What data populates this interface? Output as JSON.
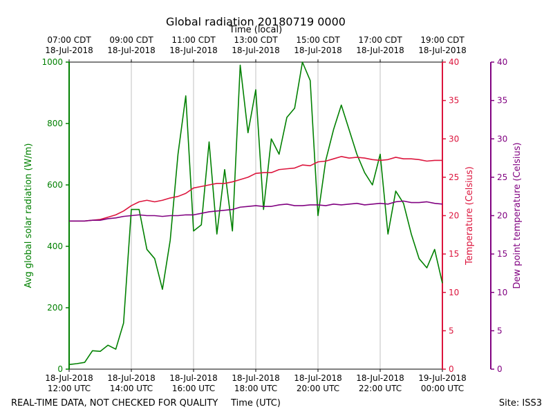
{
  "chart_data": {
    "type": "line",
    "title": "Global radiation 20180719 0000",
    "x_label": "Time (UTC)",
    "top_x_label": "Time (local)",
    "y_label": "Avg global solar radiation (W/m)",
    "y2_label": "Temperature (Celsius)",
    "y3_label": "Dew point temperature (Celsius)",
    "annotations": [
      "REAL-TIME DATA, NOT CHECKED FOR QUALITY",
      "Site: ISS3"
    ],
    "grid": "x",
    "xlim": [
      "2018-07-18T12:00",
      "2018-07-19T00:00"
    ],
    "xticks": [
      {
        "value": "2018-07-18T12:00",
        "label": [
          "18-Jul-2018",
          "12:00 UTC"
        ]
      },
      {
        "value": "2018-07-18T14:00",
        "label": [
          "18-Jul-2018",
          "14:00 UTC"
        ]
      },
      {
        "value": "2018-07-18T16:00",
        "label": [
          "18-Jul-2018",
          "16:00 UTC"
        ]
      },
      {
        "value": "2018-07-18T18:00",
        "label": [
          "18-Jul-2018",
          "18:00 UTC"
        ]
      },
      {
        "value": "2018-07-18T20:00",
        "label": [
          "18-Jul-2018",
          "20:00 UTC"
        ]
      },
      {
        "value": "2018-07-18T22:00",
        "label": [
          "18-Jul-2018",
          "22:00 UTC"
        ]
      },
      {
        "value": "2018-07-19T00:00",
        "label": [
          "19-Jul-2018",
          "00:00 UTC"
        ]
      }
    ],
    "top_xticks": [
      {
        "value": "2018-07-18T12:00",
        "label": [
          "07:00 CDT",
          "18-Jul-2018"
        ]
      },
      {
        "value": "2018-07-18T14:00",
        "label": [
          "09:00 CDT",
          "18-Jul-2018"
        ]
      },
      {
        "value": "2018-07-18T16:00",
        "label": [
          "11:00 CDT",
          "18-Jul-2018"
        ]
      },
      {
        "value": "2018-07-18T18:00",
        "label": [
          "13:00 CDT",
          "18-Jul-2018"
        ]
      },
      {
        "value": "2018-07-18T20:00",
        "label": [
          "15:00 CDT",
          "18-Jul-2018"
        ]
      },
      {
        "value": "2018-07-18T22:00",
        "label": [
          "17:00 CDT",
          "18-Jul-2018"
        ]
      },
      {
        "value": "2018-07-19T00:00",
        "label": [
          "19:00 CDT",
          "18-Jul-2018"
        ]
      }
    ],
    "ylim": [
      0,
      1000
    ],
    "yticks": [
      0,
      200,
      400,
      600,
      800,
      1000
    ],
    "y2lim": [
      0,
      40
    ],
    "y2ticks": [
      0,
      5,
      10,
      15,
      20,
      25,
      30,
      35,
      40
    ],
    "y3lim": [
      0,
      40
    ],
    "y3ticks": [
      0,
      5,
      10,
      15,
      20,
      25,
      30,
      35,
      40
    ],
    "axis_colors": {
      "y": "#008000",
      "y2": "#dc143c",
      "y3": "#800080"
    },
    "x": [
      "2018-07-18T12:00",
      "2018-07-18T12:15",
      "2018-07-18T12:30",
      "2018-07-18T12:45",
      "2018-07-18T13:00",
      "2018-07-18T13:15",
      "2018-07-18T13:30",
      "2018-07-18T13:45",
      "2018-07-18T14:00",
      "2018-07-18T14:15",
      "2018-07-18T14:30",
      "2018-07-18T14:45",
      "2018-07-18T15:00",
      "2018-07-18T15:15",
      "2018-07-18T15:30",
      "2018-07-18T15:45",
      "2018-07-18T16:00",
      "2018-07-18T16:15",
      "2018-07-18T16:30",
      "2018-07-18T16:45",
      "2018-07-18T17:00",
      "2018-07-18T17:15",
      "2018-07-18T17:30",
      "2018-07-18T17:45",
      "2018-07-18T18:00",
      "2018-07-18T18:15",
      "2018-07-18T18:30",
      "2018-07-18T18:45",
      "2018-07-18T19:00",
      "2018-07-18T19:15",
      "2018-07-18T19:30",
      "2018-07-18T19:45",
      "2018-07-18T20:00",
      "2018-07-18T20:15",
      "2018-07-18T20:30",
      "2018-07-18T20:45",
      "2018-07-18T21:00",
      "2018-07-18T21:15",
      "2018-07-18T21:30",
      "2018-07-18T21:45",
      "2018-07-18T22:00",
      "2018-07-18T22:15",
      "2018-07-18T22:30",
      "2018-07-18T22:45",
      "2018-07-18T23:00",
      "2018-07-18T23:15",
      "2018-07-18T23:30",
      "2018-07-18T23:45",
      "2018-07-19T00:00"
    ],
    "series": [
      {
        "name": "Avg global solar radiation",
        "axis": "y",
        "color": "#008000",
        "values": [
          15,
          18,
          22,
          60,
          58,
          78,
          65,
          150,
          520,
          520,
          390,
          360,
          260,
          420,
          700,
          890,
          450,
          470,
          740,
          440,
          650,
          450,
          990,
          770,
          910,
          520,
          750,
          700,
          820,
          850,
          1000,
          940,
          500,
          680,
          780,
          860,
          780,
          700,
          640,
          600,
          700,
          440,
          580,
          540,
          440,
          360,
          330,
          390,
          280
        ]
      },
      {
        "name": "Temperature",
        "axis": "y2",
        "color": "#dc143c",
        "values": [
          19.3,
          19.3,
          19.3,
          19.4,
          19.5,
          19.8,
          20.1,
          20.6,
          21.3,
          21.8,
          22.0,
          21.8,
          22.0,
          22.3,
          22.5,
          22.9,
          23.6,
          23.8,
          24.0,
          24.2,
          24.2,
          24.4,
          24.7,
          25.0,
          25.5,
          25.6,
          25.6,
          26.0,
          26.1,
          26.2,
          26.6,
          26.5,
          27.0,
          27.1,
          27.4,
          27.7,
          27.5,
          27.6,
          27.5,
          27.3,
          27.2,
          27.3,
          27.6,
          27.4,
          27.4,
          27.3,
          27.1,
          27.2,
          27.2
        ]
      },
      {
        "name": "Dew point temperature",
        "axis": "y3",
        "color": "#800080",
        "values": [
          19.3,
          19.3,
          19.3,
          19.4,
          19.4,
          19.6,
          19.7,
          19.9,
          20.0,
          20.1,
          20.0,
          20.0,
          19.9,
          20.0,
          20.0,
          20.1,
          20.1,
          20.3,
          20.5,
          20.6,
          20.7,
          20.8,
          21.1,
          21.2,
          21.3,
          21.2,
          21.2,
          21.4,
          21.5,
          21.3,
          21.3,
          21.4,
          21.4,
          21.3,
          21.5,
          21.4,
          21.5,
          21.6,
          21.4,
          21.5,
          21.6,
          21.5,
          21.8,
          21.9,
          21.7,
          21.7,
          21.8,
          21.6,
          21.5
        ]
      }
    ]
  }
}
